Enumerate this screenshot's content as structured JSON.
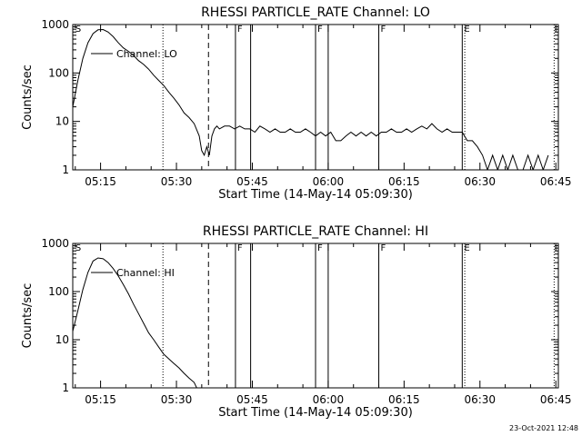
{
  "timestamp": "23-Oct-2021 12:48",
  "colors": {
    "background": "#ffffff",
    "foreground": "#000000"
  },
  "chart_data": [
    {
      "type": "line",
      "title": "RHESSI PARTICLE_RATE Channel: LO",
      "xlabel": "Start Time (14-May-14 05:09:30)",
      "ylabel": "Counts/sec",
      "yscale": "log",
      "ylim": [
        1,
        1000
      ],
      "xlim": [
        0,
        5760
      ],
      "xtick_values": [
        330,
        1230,
        2130,
        3030,
        3930,
        4830,
        5730
      ],
      "xtick_labels": [
        "05:15",
        "05:30",
        "05:45",
        "06:00",
        "06:15",
        "06:30",
        "06:45"
      ],
      "ytick_values": [
        1,
        10,
        100,
        1000
      ],
      "ytick_labels": [
        "1",
        "10",
        "100",
        "1000"
      ],
      "legend": "Channel: LO",
      "legend_placement": "upper-left",
      "flag_markers": [
        {
          "label": "S",
          "x": 10,
          "style": "dotted"
        },
        {
          "label": "F",
          "x": 1930,
          "style": "solid"
        },
        {
          "label": "F",
          "x": 2880,
          "style": "solid"
        },
        {
          "label": "F",
          "x": 3630,
          "style": "solid"
        },
        {
          "label": "E",
          "x": 4620,
          "style": "dotted"
        }
      ],
      "vertical_lines": [
        {
          "x": 1070,
          "style": "dotted"
        },
        {
          "x": 1610,
          "style": "dashed"
        },
        {
          "x": 1930,
          "style": "solid"
        },
        {
          "x": 2110,
          "style": "solid"
        },
        {
          "x": 2880,
          "style": "solid"
        },
        {
          "x": 3030,
          "style": "solid"
        },
        {
          "x": 3630,
          "style": "solid"
        },
        {
          "x": 4620,
          "style": "solid"
        },
        {
          "x": 4650,
          "style": "dotted"
        },
        {
          "x": 5710,
          "style": "dotted"
        }
      ],
      "series": [
        {
          "x": [
            0,
            60,
            120,
            180,
            240,
            300,
            360,
            420,
            480,
            540,
            600,
            660,
            720,
            780,
            840,
            900,
            960,
            1020,
            1080,
            1140,
            1200,
            1260,
            1320,
            1380,
            1440,
            1500,
            1530,
            1560,
            1590,
            1620,
            1650,
            1680,
            1710,
            1740,
            1800,
            1860,
            1920,
            1980,
            2040,
            2100,
            2160,
            2220,
            2280,
            2340,
            2400,
            2460,
            2520,
            2580,
            2640,
            2700,
            2760,
            2820,
            2880,
            2940,
            3000,
            3060,
            3120,
            3180,
            3240,
            3300,
            3360,
            3420,
            3480,
            3540,
            3600,
            3660,
            3720,
            3780,
            3840,
            3900,
            3960,
            4020,
            4080,
            4140,
            4200,
            4260,
            4320,
            4380,
            4440,
            4500,
            4560,
            4620,
            4680,
            4740,
            4800,
            4860,
            4920,
            4980,
            5040,
            5100,
            5160,
            5220,
            5280,
            5340,
            5400,
            5460,
            5520,
            5580,
            5640
          ],
          "y": [
            20,
            70,
            200,
            420,
            650,
            780,
            790,
            700,
            560,
            420,
            330,
            280,
            230,
            180,
            150,
            120,
            90,
            70,
            55,
            40,
            30,
            22,
            15,
            12,
            9,
            5,
            2.5,
            2,
            3,
            2,
            5,
            7,
            8,
            7,
            8,
            8,
            7,
            8,
            7,
            7,
            6,
            8,
            7,
            6,
            7,
            6,
            6,
            7,
            6,
            6,
            7,
            6,
            5,
            6,
            5,
            6,
            4,
            4,
            5,
            6,
            5,
            6,
            5,
            6,
            5,
            6,
            6,
            7,
            6,
            6,
            7,
            6,
            7,
            8,
            7,
            9,
            7,
            6,
            7,
            6,
            6,
            6,
            4,
            4,
            3,
            2,
            1,
            2,
            1,
            2,
            1,
            2,
            1,
            1,
            2,
            1,
            2,
            1,
            2
          ]
        }
      ]
    },
    {
      "type": "line",
      "title": "RHESSI PARTICLE_RATE Channel: HI",
      "xlabel": "Start Time (14-May-14 05:09:30)",
      "ylabel": "Counts/sec",
      "yscale": "log",
      "ylim": [
        1,
        1000
      ],
      "xlim": [
        0,
        5760
      ],
      "xtick_values": [
        330,
        1230,
        2130,
        3030,
        3930,
        4830,
        5730
      ],
      "xtick_labels": [
        "05:15",
        "05:30",
        "05:45",
        "06:00",
        "06:15",
        "06:30",
        "06:45"
      ],
      "ytick_values": [
        1,
        10,
        100,
        1000
      ],
      "ytick_labels": [
        "1",
        "10",
        "100",
        "1000"
      ],
      "legend": "Channel: HI",
      "legend_placement": "upper-left",
      "flag_markers": [
        {
          "label": "S",
          "x": 10,
          "style": "dotted"
        },
        {
          "label": "F",
          "x": 1930,
          "style": "solid"
        },
        {
          "label": "F",
          "x": 2880,
          "style": "solid"
        },
        {
          "label": "F",
          "x": 3630,
          "style": "solid"
        },
        {
          "label": "E",
          "x": 4620,
          "style": "dotted"
        }
      ],
      "vertical_lines": [
        {
          "x": 1070,
          "style": "dotted"
        },
        {
          "x": 1610,
          "style": "dashed"
        },
        {
          "x": 1930,
          "style": "solid"
        },
        {
          "x": 2110,
          "style": "solid"
        },
        {
          "x": 2880,
          "style": "solid"
        },
        {
          "x": 3030,
          "style": "solid"
        },
        {
          "x": 3630,
          "style": "solid"
        },
        {
          "x": 4620,
          "style": "solid"
        },
        {
          "x": 4650,
          "style": "dotted"
        },
        {
          "x": 5710,
          "style": "dotted"
        }
      ],
      "series": [
        {
          "x": [
            0,
            60,
            120,
            180,
            240,
            300,
            360,
            420,
            480,
            540,
            600,
            660,
            720,
            780,
            840,
            900,
            960,
            1020,
            1080,
            1140,
            1200,
            1260,
            1320,
            1380,
            1440,
            1470
          ],
          "y": [
            15,
            40,
            110,
            250,
            430,
            500,
            480,
            400,
            300,
            210,
            140,
            90,
            55,
            35,
            22,
            14,
            10,
            7,
            5,
            4,
            3.2,
            2.6,
            2,
            1.6,
            1.3,
            1
          ]
        }
      ]
    }
  ]
}
